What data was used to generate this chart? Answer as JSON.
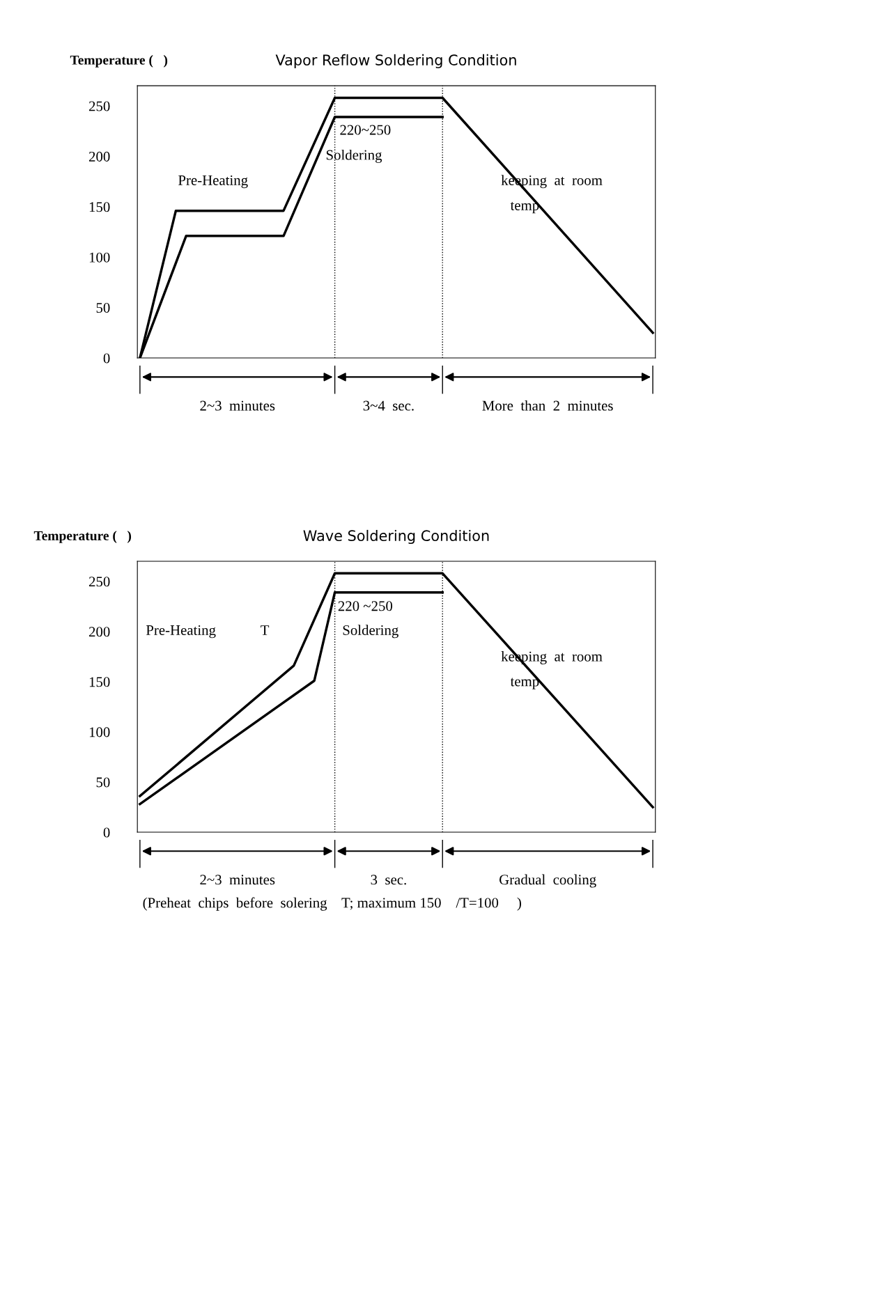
{
  "chart_data": [
    {
      "type": "line",
      "title": "Vapor Reflow Soldering Condition",
      "ylabel": "Temperature (   )",
      "ylim": [
        0,
        270
      ],
      "yticks": [
        0,
        50,
        100,
        150,
        200,
        250
      ],
      "tick_labels": "y",
      "grid": false,
      "categories": [
        null,
        null,
        null,
        null,
        null,
        null,
        null,
        null,
        null,
        null,
        null,
        null,
        null,
        null,
        null,
        null,
        null,
        null,
        null,
        null,
        null,
        null,
        null,
        null,
        null,
        null,
        null,
        null,
        null,
        null,
        null,
        null,
        null,
        null,
        null,
        null,
        null,
        null,
        null,
        null,
        null,
        null,
        null,
        null,
        null,
        null,
        null,
        null,
        null,
        null,
        null,
        null,
        null,
        null,
        null,
        null,
        null,
        null,
        null,
        null,
        null,
        null,
        null,
        null,
        null,
        null,
        null,
        null,
        null,
        null,
        null,
        null,
        null,
        null,
        null,
        null,
        null,
        null,
        null,
        null,
        null,
        null,
        null,
        null,
        null,
        null,
        null,
        null,
        null,
        null,
        null,
        null,
        null,
        null,
        null,
        null,
        null,
        null,
        null,
        null,
        null
      ],
      "series": [
        {
          "color": "#000000",
          "values": [
            0,
            null,
            null,
            null,
            null,
            null,
            null,
            146,
            null,
            null,
            null,
            null,
            null,
            null,
            null,
            null,
            null,
            null,
            null,
            null,
            null,
            null,
            null,
            null,
            null,
            null,
            null,
            null,
            146,
            null,
            null,
            null,
            null,
            null,
            null,
            null,
            null,
            null,
            258,
            null,
            null,
            null,
            null,
            null,
            null,
            null,
            null,
            null,
            null,
            null,
            null,
            null,
            null,
            null,
            null,
            null,
            null,
            null,
            null,
            258,
            null,
            null,
            null,
            null,
            null,
            null,
            null,
            null,
            null,
            null,
            null,
            null,
            null,
            null,
            null,
            null,
            null,
            null,
            null,
            null,
            null,
            null,
            null,
            null,
            null,
            null,
            null,
            null,
            null,
            null,
            null,
            null,
            null,
            null,
            null,
            null,
            null,
            null,
            null,
            null,
            25
          ]
        },
        {
          "color": "#000000",
          "values": [
            0,
            null,
            null,
            null,
            null,
            null,
            null,
            null,
            null,
            121,
            null,
            null,
            null,
            null,
            null,
            null,
            null,
            null,
            null,
            null,
            null,
            null,
            null,
            null,
            null,
            null,
            null,
            null,
            121,
            null,
            null,
            null,
            null,
            null,
            null,
            null,
            null,
            null,
            239,
            null,
            null,
            null,
            null,
            null,
            null,
            null,
            null,
            null,
            null,
            null,
            null,
            null,
            null,
            null,
            null,
            null,
            null,
            null,
            null,
            239,
            null,
            null,
            null,
            null,
            null,
            null,
            null,
            null,
            null,
            null,
            null,
            null,
            null,
            null,
            null,
            null,
            null,
            null,
            null,
            null,
            null,
            null,
            null,
            null,
            null,
            null,
            null,
            null,
            null,
            null,
            null,
            null,
            null,
            null,
            null,
            null,
            null,
            null,
            null,
            null,
            null
          ]
        }
      ],
      "annotations": [
        "Pre-Heating",
        "220~250",
        "Soldering",
        "keeping  at  room",
        "temp",
        "2~3  minutes",
        "3~4  sec.",
        "More  than  2  minutes"
      ]
    },
    {
      "type": "line",
      "title": "Wave Soldering Condition",
      "ylabel": "Temperature (   )",
      "ylim": [
        0,
        270
      ],
      "yticks": [
        0,
        50,
        100,
        150,
        200,
        250
      ],
      "tick_labels": "y",
      "grid": false,
      "categories": [
        null,
        null,
        null,
        null,
        null,
        null,
        null,
        null,
        null,
        null,
        null,
        null,
        null,
        null,
        null,
        null,
        null,
        null,
        null,
        null,
        null,
        null,
        null,
        null,
        null,
        null,
        null,
        null,
        null,
        null,
        null,
        null,
        null,
        null,
        null,
        null,
        null,
        null,
        null,
        null,
        null,
        null,
        null,
        null,
        null,
        null,
        null,
        null,
        null,
        null,
        null,
        null,
        null,
        null,
        null,
        null,
        null,
        null,
        null,
        null,
        null,
        null,
        null,
        null,
        null,
        null,
        null,
        null,
        null,
        null,
        null,
        null,
        null,
        null,
        null,
        null,
        null,
        null,
        null,
        null,
        null,
        null,
        null,
        null,
        null,
        null,
        null,
        null,
        null,
        null,
        null,
        null,
        null,
        null,
        null,
        null,
        null,
        null,
        null,
        null,
        null
      ],
      "series": [
        {
          "color": "#000000",
          "values": [
            36,
            null,
            null,
            null,
            null,
            null,
            null,
            null,
            null,
            null,
            null,
            null,
            null,
            null,
            null,
            null,
            null,
            null,
            null,
            null,
            null,
            null,
            null,
            null,
            null,
            null,
            null,
            null,
            null,
            null,
            166,
            null,
            null,
            null,
            null,
            null,
            null,
            null,
            258,
            null,
            null,
            null,
            null,
            null,
            null,
            null,
            null,
            null,
            null,
            null,
            null,
            null,
            null,
            null,
            null,
            null,
            null,
            null,
            null,
            258,
            null,
            null,
            null,
            null,
            null,
            null,
            null,
            null,
            null,
            null,
            null,
            null,
            null,
            null,
            null,
            null,
            null,
            null,
            null,
            null,
            null,
            null,
            null,
            null,
            null,
            null,
            null,
            null,
            null,
            null,
            null,
            null,
            null,
            null,
            null,
            null,
            null,
            null,
            null,
            null,
            25
          ]
        },
        {
          "color": "#000000",
          "values": [
            28,
            null,
            null,
            null,
            null,
            null,
            null,
            null,
            null,
            null,
            null,
            null,
            null,
            null,
            null,
            null,
            null,
            null,
            null,
            null,
            null,
            null,
            null,
            null,
            null,
            null,
            null,
            null,
            null,
            null,
            null,
            null,
            null,
            null,
            151,
            null,
            null,
            null,
            239,
            null,
            null,
            null,
            null,
            null,
            null,
            null,
            null,
            null,
            null,
            null,
            null,
            null,
            null,
            null,
            null,
            null,
            null,
            null,
            null,
            239,
            null,
            null,
            null,
            null,
            null,
            null,
            null,
            null,
            null,
            null,
            null,
            null,
            null,
            null,
            null,
            null,
            null,
            null,
            null,
            null,
            null,
            null,
            null,
            null,
            null,
            null,
            null,
            null,
            null,
            null,
            null,
            null,
            null,
            null,
            null,
            null,
            null,
            null,
            null,
            null,
            null
          ]
        }
      ],
      "annotations": [
        "Pre-Heating",
        "T",
        "220 ~250",
        "Soldering",
        "keeping  at  room",
        "temp",
        "2~3  minutes",
        "3  sec.",
        "Gradual  cooling",
        "(Preheat  chips  before  solering    T; maximum 150    /T=100     )"
      ]
    }
  ]
}
